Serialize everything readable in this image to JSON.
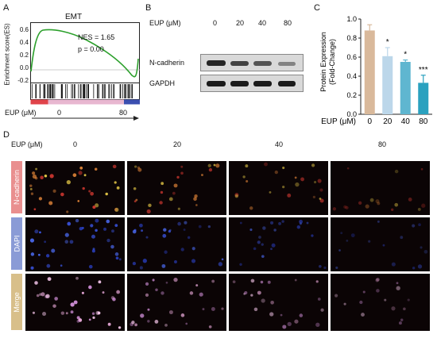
{
  "panels": {
    "A": "A",
    "B": "B",
    "C": "C",
    "D": "D"
  },
  "panel_a": {
    "title": "EMT",
    "ylabel": "Enrichment score(ES)",
    "yticks": [
      "0.6",
      "0.4",
      "0.2",
      "0.0",
      "-0.2"
    ],
    "nes": "NES = 1.65",
    "p": "p = 0.00",
    "eup_label": "EUP (μM)",
    "eup_low": "0",
    "eup_high": "80"
  },
  "panel_b": {
    "eup_label": "EUP (μM)",
    "doses": [
      "0",
      "20",
      "40",
      "80"
    ],
    "rows": [
      "N-cadherin",
      "GAPDH"
    ]
  },
  "panel_c": {
    "xlabel_prefix": "EUP (μM)",
    "sig": [
      "",
      "*",
      "*",
      "***"
    ],
    "colors": [
      "#d9b99b",
      "#bcd7ea",
      "#5fb6d0",
      "#2aa1bf"
    ]
  },
  "chart_data": {
    "type": "bar",
    "categories": [
      "0",
      "20",
      "40",
      "80"
    ],
    "values": [
      0.88,
      0.61,
      0.55,
      0.33
    ],
    "errors": [
      0.06,
      0.09,
      0.02,
      0.08
    ],
    "title": "",
    "xlabel": "EUP (μM)",
    "ylabel": "Protein Expression (Fold-Change)",
    "ylim": [
      0.0,
      1.0
    ],
    "yticks": [
      "1.0",
      "0.8",
      "0.6",
      "0.4",
      "0.2",
      "0.0"
    ]
  },
  "panel_d": {
    "eup_label": "EUP (μM)",
    "doses": [
      "0",
      "20",
      "40",
      "80"
    ],
    "rows": [
      {
        "label": "N-cadherin",
        "color": "#e98f8f"
      },
      {
        "label": "DAPI",
        "color": "#8a9bd6"
      },
      {
        "label": "Merge",
        "color": "#d8bf8a"
      }
    ]
  }
}
